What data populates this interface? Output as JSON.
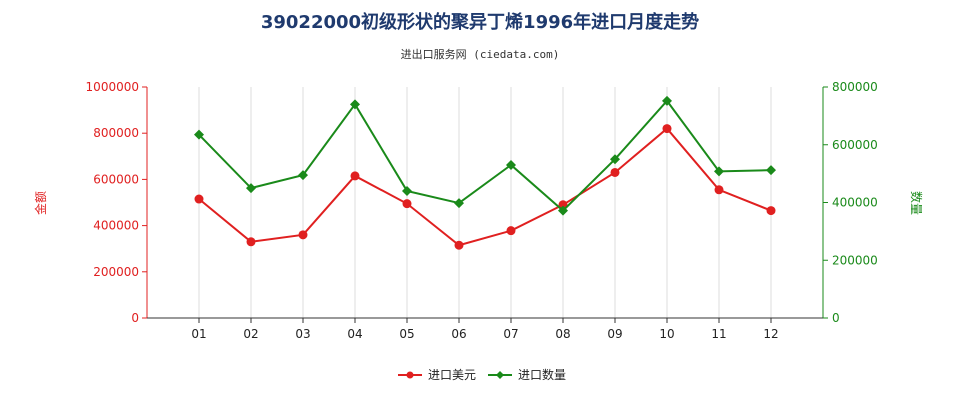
{
  "chart_data": {
    "type": "line",
    "title": "39022000初级形状的聚异丁烯1996年进口月度走势",
    "subtitle": "进出口服务网 (ciedata.com)",
    "categories": [
      "01",
      "02",
      "03",
      "04",
      "05",
      "06",
      "07",
      "08",
      "09",
      "10",
      "11",
      "12"
    ],
    "y_left": {
      "label": "金额",
      "ylim": [
        0,
        1000000
      ],
      "ticks": [
        "0",
        "200000",
        "400000",
        "600000",
        "800000",
        "1000000"
      ],
      "color": "#e02020"
    },
    "y_right": {
      "label": "数量",
      "ylim": [
        0,
        800000
      ],
      "ticks": [
        "0",
        "200000",
        "400000",
        "600000",
        "800000"
      ],
      "color": "#1a8a1a"
    },
    "series": [
      {
        "name": "进口美元",
        "axis": "left",
        "color": "#e02020",
        "marker": "circle",
        "values": [
          515000,
          330000,
          360000,
          615000,
          495000,
          315000,
          378000,
          490000,
          630000,
          820000,
          555000,
          465000
        ]
      },
      {
        "name": "进口数量",
        "axis": "right",
        "color": "#1a8a1a",
        "marker": "diamond",
        "values": [
          635000,
          450000,
          495000,
          740000,
          440000,
          398000,
          530000,
          372000,
          550000,
          752000,
          508000,
          512000
        ]
      }
    ],
    "legend_placement": "bottom-center",
    "grid": "vertical"
  }
}
